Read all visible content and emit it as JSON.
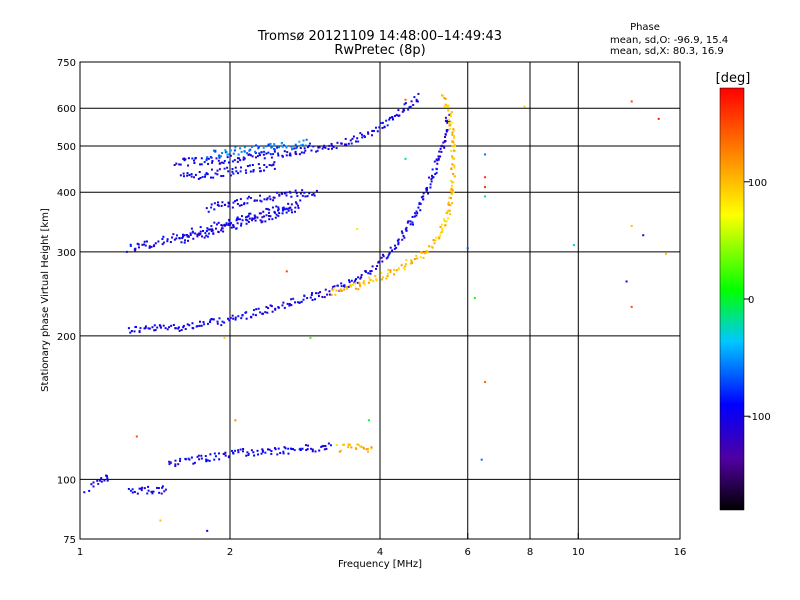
{
  "chart_data": {
    "type": "scatter",
    "title": "Tromsø 20121109 14:48:00–14:49:43",
    "subtitle": "RwPretec (8p)",
    "xlabel": "Frequency [MHz]",
    "ylabel": "Stationary phase Virtual Height [km]",
    "x_scale": "log",
    "y_scale": "log",
    "xlim": [
      1,
      16
    ],
    "ylim": [
      75,
      750
    ],
    "x_ticks": [
      1,
      2,
      4,
      6,
      8,
      10,
      16
    ],
    "y_ticks": [
      75,
      100,
      200,
      300,
      400,
      500,
      600,
      750
    ],
    "x_gridlines": [
      2,
      4,
      6,
      8,
      10
    ],
    "y_gridlines": [
      100,
      200,
      300,
      400,
      500,
      600
    ],
    "grid": true,
    "stats_heading": "Phase",
    "stats": [
      "mean, sd,O: -96.9, 15.4",
      "mean, sd,X:  80.3, 16.9"
    ],
    "colorbar": {
      "label": "[deg]",
      "min": -180,
      "max": 180,
      "ticks": [
        100,
        0,
        -100
      ]
    },
    "traces": [
      {
        "phase": -100,
        "points": [
          [
            1.25,
            206
          ],
          [
            1.4,
            207
          ],
          [
            1.6,
            209
          ],
          [
            1.8,
            212
          ],
          [
            2.0,
            216
          ],
          [
            2.2,
            222
          ],
          [
            2.5,
            230
          ],
          [
            2.8,
            238
          ],
          [
            3.1,
            245
          ],
          [
            3.4,
            255
          ],
          [
            3.7,
            268
          ],
          [
            4.0,
            285
          ],
          [
            4.2,
            300
          ],
          [
            4.4,
            320
          ],
          [
            4.6,
            345
          ],
          [
            4.8,
            375
          ],
          [
            5.0,
            410
          ],
          [
            5.2,
            455
          ],
          [
            5.35,
            500
          ],
          [
            5.45,
            545
          ],
          [
            5.5,
            580
          ]
        ]
      },
      {
        "phase": 100,
        "points": [
          [
            3.2,
            246
          ],
          [
            3.6,
            255
          ],
          [
            4.0,
            266
          ],
          [
            4.4,
            278
          ],
          [
            4.8,
            292
          ],
          [
            5.1,
            310
          ],
          [
            5.3,
            330
          ],
          [
            5.45,
            355
          ],
          [
            5.55,
            385
          ],
          [
            5.6,
            420
          ],
          [
            5.62,
            470
          ],
          [
            5.6,
            520
          ],
          [
            5.55,
            570
          ],
          [
            5.45,
            610
          ],
          [
            5.3,
            640
          ]
        ]
      },
      {
        "phase": -100,
        "points": [
          [
            1.25,
            305
          ],
          [
            1.45,
            315
          ],
          [
            1.6,
            325
          ],
          [
            1.8,
            335
          ],
          [
            2.0,
            345
          ],
          [
            2.2,
            355
          ],
          [
            2.5,
            368
          ],
          [
            2.8,
            380
          ]
        ]
      },
      {
        "phase": -100,
        "points": [
          [
            1.6,
            318
          ],
          [
            1.8,
            328
          ],
          [
            2.0,
            338
          ],
          [
            2.2,
            348
          ],
          [
            2.5,
            360
          ],
          [
            2.7,
            370
          ]
        ]
      },
      {
        "phase": -100,
        "points": [
          [
            1.8,
            370
          ],
          [
            2.0,
            378
          ],
          [
            2.2,
            385
          ],
          [
            2.5,
            392
          ],
          [
            2.8,
            398
          ],
          [
            3.0,
            402
          ]
        ]
      },
      {
        "phase": -100,
        "points": [
          [
            1.6,
            430
          ],
          [
            1.8,
            436
          ],
          [
            2.0,
            442
          ],
          [
            2.2,
            448
          ],
          [
            2.5,
            455
          ]
        ]
      },
      {
        "phase": -100,
        "points": [
          [
            1.55,
            462
          ],
          [
            1.8,
            465
          ],
          [
            2.0,
            470
          ],
          [
            2.3,
            478
          ],
          [
            2.6,
            485
          ],
          [
            3.0,
            495
          ],
          [
            3.3,
            505
          ],
          [
            3.6,
            520
          ],
          [
            3.9,
            540
          ],
          [
            4.2,
            565
          ],
          [
            4.4,
            590
          ],
          [
            4.6,
            615
          ],
          [
            4.8,
            640
          ]
        ]
      },
      {
        "phase": -60,
        "points": [
          [
            1.8,
            480
          ],
          [
            2.0,
            487
          ],
          [
            2.3,
            493
          ],
          [
            2.6,
            500
          ],
          [
            2.9,
            508
          ]
        ]
      },
      {
        "phase": -100,
        "points": [
          [
            1.05,
            96
          ],
          [
            1.1,
            99
          ],
          [
            1.15,
            102
          ]
        ]
      },
      {
        "phase": -100,
        "points": [
          [
            1.25,
            95
          ],
          [
            1.3,
            95
          ],
          [
            1.35,
            95
          ],
          [
            1.4,
            95
          ],
          [
            1.45,
            95
          ],
          [
            1.5,
            95
          ]
        ]
      },
      {
        "phase": -100,
        "points": [
          [
            1.5,
            107
          ],
          [
            1.6,
            109
          ],
          [
            1.7,
            110
          ],
          [
            1.8,
            111
          ],
          [
            1.9,
            112
          ],
          [
            2.0,
            113
          ],
          [
            2.2,
            114
          ],
          [
            2.4,
            115
          ],
          [
            2.6,
            115
          ],
          [
            2.8,
            116
          ],
          [
            3.0,
            116
          ],
          [
            3.2,
            117
          ]
        ]
      },
      {
        "phase": 100,
        "points": [
          [
            3.3,
            116
          ],
          [
            3.5,
            117
          ],
          [
            3.7,
            117
          ],
          [
            3.9,
            116
          ]
        ]
      }
    ],
    "scatter_points": [
      {
        "x": 1.02,
        "y": 94,
        "phase": -100
      },
      {
        "x": 1.45,
        "y": 82,
        "phase": 100
      },
      {
        "x": 1.8,
        "y": 78,
        "phase": -100
      },
      {
        "x": 1.95,
        "y": 198,
        "phase": 90
      },
      {
        "x": 2.6,
        "y": 273,
        "phase": 150
      },
      {
        "x": 2.9,
        "y": 198,
        "phase": 20
      },
      {
        "x": 3.6,
        "y": 335,
        "phase": 80
      },
      {
        "x": 6.2,
        "y": 240,
        "phase": 10
      },
      {
        "x": 6.5,
        "y": 480,
        "phase": -60
      },
      {
        "x": 6.5,
        "y": 430,
        "phase": 160
      },
      {
        "x": 6.5,
        "y": 410,
        "phase": 160
      },
      {
        "x": 6.5,
        "y": 392,
        "phase": -20
      },
      {
        "x": 6.5,
        "y": 160,
        "phase": 140
      },
      {
        "x": 6.4,
        "y": 110,
        "phase": -60
      },
      {
        "x": 6.0,
        "y": 305,
        "phase": -70
      },
      {
        "x": 7.8,
        "y": 605,
        "phase": 90
      },
      {
        "x": 9.8,
        "y": 310,
        "phase": -30
      },
      {
        "x": 12.5,
        "y": 260,
        "phase": -110
      },
      {
        "x": 12.8,
        "y": 620,
        "phase": 150
      },
      {
        "x": 12.8,
        "y": 230,
        "phase": 150
      },
      {
        "x": 12.8,
        "y": 340,
        "phase": 100
      },
      {
        "x": 13.5,
        "y": 325,
        "phase": -110
      },
      {
        "x": 14.5,
        "y": 570,
        "phase": 170
      },
      {
        "x": 15.0,
        "y": 297,
        "phase": 100
      },
      {
        "x": 1.3,
        "y": 123,
        "phase": 150
      },
      {
        "x": 2.05,
        "y": 133,
        "phase": 120
      },
      {
        "x": 3.8,
        "y": 133,
        "phase": 0
      },
      {
        "x": 4.5,
        "y": 625,
        "phase": 140
      },
      {
        "x": 4.5,
        "y": 470,
        "phase": -20
      }
    ]
  }
}
